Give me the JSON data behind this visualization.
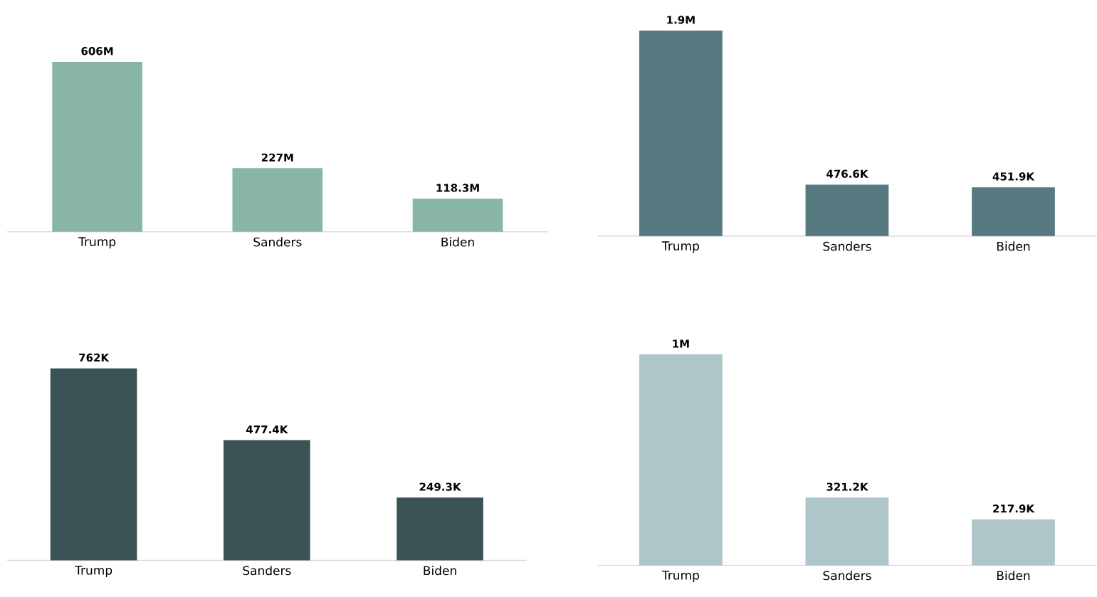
{
  "chart_data": [
    {
      "type": "bar",
      "categories": [
        "Trump",
        "Sanders",
        "Biden"
      ],
      "values": [
        606000000,
        227000000,
        118300000
      ],
      "value_labels": [
        "606M",
        "227M",
        "118.3M"
      ],
      "color": "#88b5a8"
    },
    {
      "type": "bar",
      "categories": [
        "Trump",
        "Sanders",
        "Biden"
      ],
      "values": [
        1900000,
        476600,
        451900
      ],
      "value_labels": [
        "1.9M",
        "476.6K",
        "451.9K"
      ],
      "color": "#567a80"
    },
    {
      "type": "bar",
      "categories": [
        "Trump",
        "Sanders",
        "Biden"
      ],
      "values": [
        762000,
        477400,
        249300
      ],
      "value_labels": [
        "762K",
        "477.4K",
        "249.3K"
      ],
      "color": "#3a5155"
    },
    {
      "type": "bar",
      "categories": [
        "Trump",
        "Sanders",
        "Biden"
      ],
      "values": [
        1000000,
        321200,
        217900
      ],
      "value_labels": [
        "1M",
        "321.2K",
        "217.9K"
      ],
      "color": "#aec5ca"
    }
  ]
}
